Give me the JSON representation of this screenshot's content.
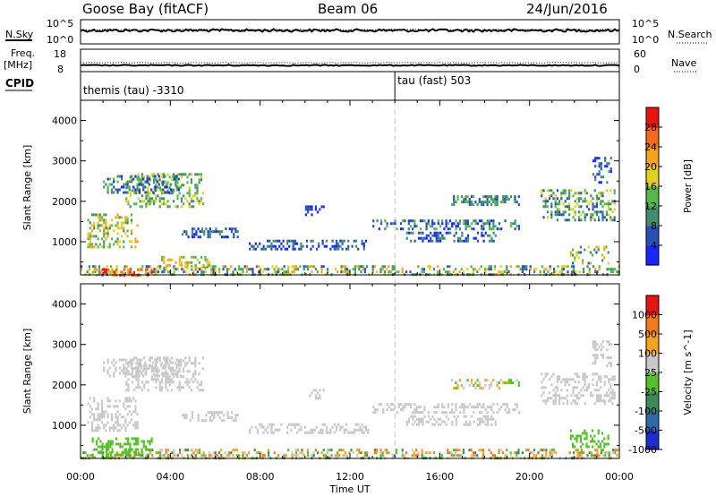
{
  "header": {
    "station": "Goose Bay (fitACF)",
    "beam": "Beam 06",
    "date": "24/Jun/2016"
  },
  "top_panels": {
    "nsky_label": "N.Sky",
    "nsky_ticks": [
      "10^5",
      "10^0"
    ],
    "nsearch_label": "N.Search",
    "nsearch_ticks": [
      "10^5",
      "10^0"
    ],
    "freq_label": "Freq.",
    "freq_unit": "[MHz]",
    "freq_ticks": [
      "18",
      "8"
    ],
    "nave_label": "Nave",
    "nave_ticks": [
      "60",
      "0"
    ],
    "cpid_label": "CPID",
    "cpid_segments": [
      {
        "label": "themis (tau) -3310",
        "start_hour": 0
      },
      {
        "label": "tau (fast) 503",
        "start_hour": 14.0
      }
    ]
  },
  "x_axis": {
    "title": "Time UT",
    "tick_labels": [
      "00:00",
      "04:00",
      "08:00",
      "12:00",
      "16:00",
      "20:00",
      "00:00"
    ],
    "tick_hours": [
      0,
      4,
      8,
      12,
      16,
      20,
      24
    ],
    "range_hours": [
      0,
      24
    ],
    "mode_change_hour": 14.0
  },
  "chart_data": [
    {
      "type": "heatmap",
      "title": "Power",
      "ylabel": "Slant Range [km]",
      "ylim": [
        180,
        4500
      ],
      "yticks": [
        1000,
        2000,
        3000,
        4000
      ],
      "colorbar": {
        "label": "Power [dB]",
        "tick_labels": [
          "4",
          "8",
          "12",
          "16",
          "20",
          "24",
          "28"
        ],
        "colors": [
          "#1428ff",
          "#2a4fb5",
          "#3f8f6e",
          "#57b84a",
          "#e0d020",
          "#f5a21e",
          "#f26a1b",
          "#e81410"
        ]
      },
      "regions": [
        {
          "t": [
            0.0,
            24.0
          ],
          "r": [
            200,
            420
          ],
          "level": [
            1,
            5
          ]
        },
        {
          "t": [
            0.5,
            3.2
          ],
          "r": [
            200,
            340
          ],
          "level": [
            5,
            7
          ]
        },
        {
          "t": [
            3.5,
            5.8
          ],
          "r": [
            350,
            650
          ],
          "level": [
            3,
            5
          ]
        },
        {
          "t": [
            0.3,
            2.5
          ],
          "r": [
            900,
            1700
          ],
          "level": [
            2,
            5
          ]
        },
        {
          "t": [
            2.0,
            5.5
          ],
          "r": [
            1900,
            2700
          ],
          "level": [
            2,
            4
          ]
        },
        {
          "t": [
            1.0,
            4.5
          ],
          "r": [
            2200,
            2650
          ],
          "level": [
            0,
            3
          ]
        },
        {
          "t": [
            4.5,
            7.0
          ],
          "r": [
            1100,
            1350
          ],
          "level": [
            0,
            2
          ]
        },
        {
          "t": [
            7.5,
            12.8
          ],
          "r": [
            850,
            1050
          ],
          "level": [
            0,
            2
          ]
        },
        {
          "t": [
            13.0,
            19.5
          ],
          "r": [
            1350,
            1550
          ],
          "level": [
            0,
            3
          ]
        },
        {
          "t": [
            14.5,
            18.5
          ],
          "r": [
            1050,
            1250
          ],
          "level": [
            0,
            2
          ]
        },
        {
          "t": [
            16.5,
            19.5
          ],
          "r": [
            1900,
            2150
          ],
          "level": [
            1,
            3
          ]
        },
        {
          "t": [
            20.5,
            23.8
          ],
          "r": [
            1550,
            2300
          ],
          "level": [
            1,
            4
          ]
        },
        {
          "t": [
            21.8,
            23.5
          ],
          "r": [
            500,
            900
          ],
          "level": [
            1,
            5
          ]
        },
        {
          "t": [
            22.8,
            23.6
          ],
          "r": [
            2500,
            3100
          ],
          "level": [
            0,
            2
          ]
        },
        {
          "t": [
            10.0,
            10.8
          ],
          "r": [
            1700,
            1900
          ],
          "level": [
            0,
            1
          ]
        }
      ]
    },
    {
      "type": "heatmap",
      "title": "Velocity",
      "ylabel": "Slant Range [km]",
      "ylim": [
        180,
        4500
      ],
      "yticks": [
        1000,
        2000,
        3000,
        4000
      ],
      "colorbar": {
        "label": "Velocity [m s^-1]",
        "tick_labels": [
          "1000",
          "500",
          "100",
          "25",
          "-25",
          "-100",
          "-500",
          "-1000"
        ],
        "colors": [
          "#1a2fd0",
          "#2f6aa8",
          "#3f8a5a",
          "#55c12a",
          "#c8c8c8",
          "#f7a51f",
          "#f27a1a",
          "#e81410"
        ]
      },
      "regions": [
        {
          "t": [
            0.0,
            24.0
          ],
          "r": [
            200,
            420
          ],
          "cls": [
            2,
            6
          ]
        },
        {
          "t": [
            0.5,
            3.2
          ],
          "r": [
            200,
            700
          ],
          "cls": [
            3,
            3
          ]
        },
        {
          "t": [
            0.3,
            2.5
          ],
          "r": [
            900,
            1700
          ],
          "cls": [
            4,
            4
          ]
        },
        {
          "t": [
            2.0,
            5.5
          ],
          "r": [
            1900,
            2700
          ],
          "cls": [
            4,
            4
          ]
        },
        {
          "t": [
            1.0,
            4.5
          ],
          "r": [
            2200,
            2650
          ],
          "cls": [
            4,
            4
          ]
        },
        {
          "t": [
            4.5,
            7.0
          ],
          "r": [
            1100,
            1350
          ],
          "cls": [
            4,
            4
          ]
        },
        {
          "t": [
            7.5,
            12.8
          ],
          "r": [
            850,
            1050
          ],
          "cls": [
            4,
            4
          ]
        },
        {
          "t": [
            13.0,
            19.5
          ],
          "r": [
            1350,
            1550
          ],
          "cls": [
            4,
            4
          ]
        },
        {
          "t": [
            14.5,
            18.5
          ],
          "r": [
            1050,
            1250
          ],
          "cls": [
            4,
            4
          ]
        },
        {
          "t": [
            16.5,
            19.5
          ],
          "r": [
            1900,
            2150
          ],
          "cls": [
            3,
            5
          ]
        },
        {
          "t": [
            20.5,
            23.8
          ],
          "r": [
            1550,
            2300
          ],
          "cls": [
            4,
            4
          ]
        },
        {
          "t": [
            21.8,
            23.5
          ],
          "r": [
            500,
            900
          ],
          "cls": [
            3,
            3
          ]
        },
        {
          "t": [
            22.8,
            23.6
          ],
          "r": [
            2500,
            3100
          ],
          "cls": [
            4,
            4
          ]
        },
        {
          "t": [
            10.0,
            10.8
          ],
          "r": [
            1700,
            1900
          ],
          "cls": [
            4,
            4
          ]
        }
      ]
    }
  ]
}
